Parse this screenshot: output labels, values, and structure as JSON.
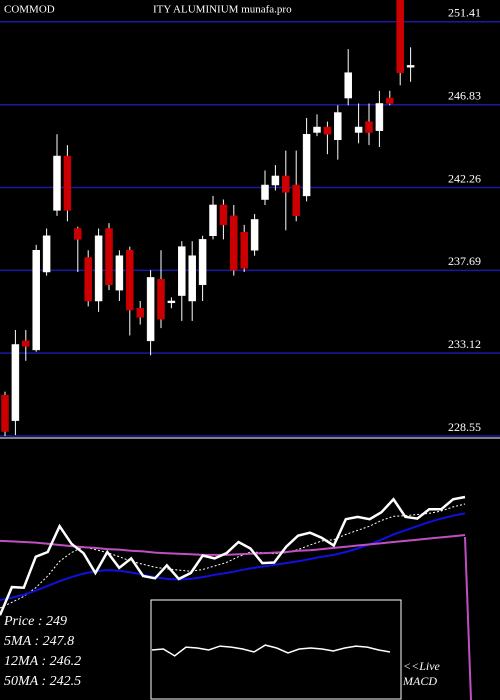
{
  "chart_data": {
    "type": "candlestick",
    "title_parts": [
      "COMMOD",
      "ITY ALUMINIUM munafa.pro"
    ],
    "ylim": [
      228.55,
      252.61
    ],
    "yticks": [
      251.41,
      246.83,
      242.26,
      237.69,
      233.12,
      228.55
    ],
    "grid": true,
    "grid_color": "#1a1aa0",
    "up_color": "#ffffff",
    "down_color": "#cc0000",
    "open": [
      230.8,
      229.4,
      233.8,
      233.3,
      237.6,
      241.0,
      244.0,
      240.0,
      238.4,
      236.0,
      240.0,
      236.6,
      238.8,
      235.6,
      233.8,
      237.2,
      235.9,
      236.3,
      236.0,
      236.9,
      239.6,
      241.3,
      240.7,
      239.8,
      238.8,
      241.6,
      242.4,
      242.9,
      242.4,
      241.8,
      245.3,
      245.6,
      244.9,
      247.2,
      245.3,
      245.9,
      245.4,
      247.2,
      252.6,
      248.9
    ],
    "high": [
      231.0,
      234.4,
      234.4,
      239.1,
      240.0,
      245.2,
      244.6,
      240.1,
      238.8,
      240.0,
      240.3,
      238.8,
      239.0,
      236.0,
      237.7,
      238.8,
      236.2,
      239.3,
      239.3,
      239.6,
      241.8,
      241.6,
      241.3,
      240.2,
      240.8,
      243.2,
      243.5,
      244.3,
      244.3,
      246.1,
      246.3,
      245.9,
      246.8,
      249.9,
      246.9,
      246.9,
      247.6,
      247.6,
      252.6,
      250.0
    ],
    "low": [
      228.55,
      228.6,
      232.7,
      233.2,
      237.4,
      240.7,
      240.4,
      237.6,
      235.7,
      235.4,
      236.6,
      236.0,
      234.1,
      234.7,
      233.0,
      234.5,
      235.6,
      234.9,
      234.9,
      236.0,
      239.4,
      239.4,
      237.4,
      237.6,
      238.5,
      241.3,
      242.1,
      239.9,
      240.4,
      241.5,
      245.1,
      244.1,
      243.8,
      246.8,
      244.7,
      244.6,
      244.5,
      246.8,
      247.9,
      248.1
    ],
    "close": [
      228.8,
      233.6,
      233.5,
      238.8,
      239.6,
      244.0,
      241.0,
      239.4,
      236.0,
      239.6,
      236.9,
      238.5,
      235.5,
      235.1,
      237.3,
      235.0,
      236.0,
      239.0,
      238.5,
      239.4,
      241.3,
      240.2,
      237.7,
      237.8,
      240.5,
      242.4,
      242.9,
      242.0,
      240.7,
      245.2,
      245.6,
      245.2,
      246.4,
      248.6,
      245.6,
      245.3,
      246.9,
      246.9,
      248.6,
      249.0
    ],
    "lower_ylim": [
      214.3,
      258.74
    ],
    "lower_series": [
      {
        "name": "5MA",
        "color": "#ffffff",
        "dashed": true,
        "values": [
          230,
          231,
          232,
          233.5,
          235.5,
          238,
          239.5,
          240.5,
          240,
          239.5,
          238.8,
          238,
          237.5,
          237,
          236.7,
          236.5,
          236.3,
          236.6,
          237.2,
          237.8,
          238.8,
          239.6,
          239.5,
          239.3,
          239.5,
          240,
          240.8,
          241.5,
          241.7,
          242.6,
          243.3,
          244,
          245,
          245.7,
          245.8,
          246,
          246.2,
          246.6,
          247.3,
          247.8
        ]
      },
      {
        "name": "12MA",
        "color": "#1010e0",
        "dashed": false,
        "values": [
          231.4,
          231.8,
          232.3,
          233,
          233.8,
          234.6,
          235.3,
          235.9,
          236.3,
          236.5,
          236.4,
          236.1,
          235.7,
          235.3,
          235,
          234.9,
          235,
          235.3,
          235.7,
          236,
          236.4,
          236.8,
          237.1,
          237.4,
          237.7,
          238,
          238.4,
          238.8,
          239.1,
          239.6,
          240.2,
          240.9,
          241.7,
          242.6,
          243.3,
          244,
          244.7,
          245.3,
          245.8,
          246.2
        ]
      },
      {
        "name": "50MA",
        "color": "#c050c0",
        "dashed": false,
        "values": [
          241.5,
          241.4,
          241.3,
          241.2,
          241,
          240.8,
          240.6,
          240.4,
          240.3,
          240.1,
          240,
          239.8,
          239.7,
          239.5,
          239.4,
          239.3,
          239.2,
          239.1,
          239.1,
          239.1,
          239.2,
          239.3,
          239.4,
          239.5,
          239.6,
          239.8,
          239.9,
          240.1,
          240.3,
          240.5,
          240.7,
          240.9,
          241.1,
          241.3,
          241.5,
          241.7,
          241.9,
          242.1,
          242.3,
          242.5
        ]
      }
    ],
    "macd": {
      "ylim": [
        -5,
        5
      ],
      "values": [
        0,
        0.1,
        -0.6,
        0.3,
        0.2,
        0,
        0.4,
        0.3,
        0.1,
        -0.2,
        0.5,
        0.2,
        -0.3,
        0.1,
        0.2,
        0.1,
        -0.1,
        0.2,
        0.4,
        0.3,
        0,
        -0.2
      ]
    },
    "info_texts": [
      "Price   : 249",
      "5MA : 247.8",
      "12MA : 246.2",
      "50MA : 242.5"
    ],
    "live_texts": [
      "<<Live",
      "MACD"
    ]
  }
}
